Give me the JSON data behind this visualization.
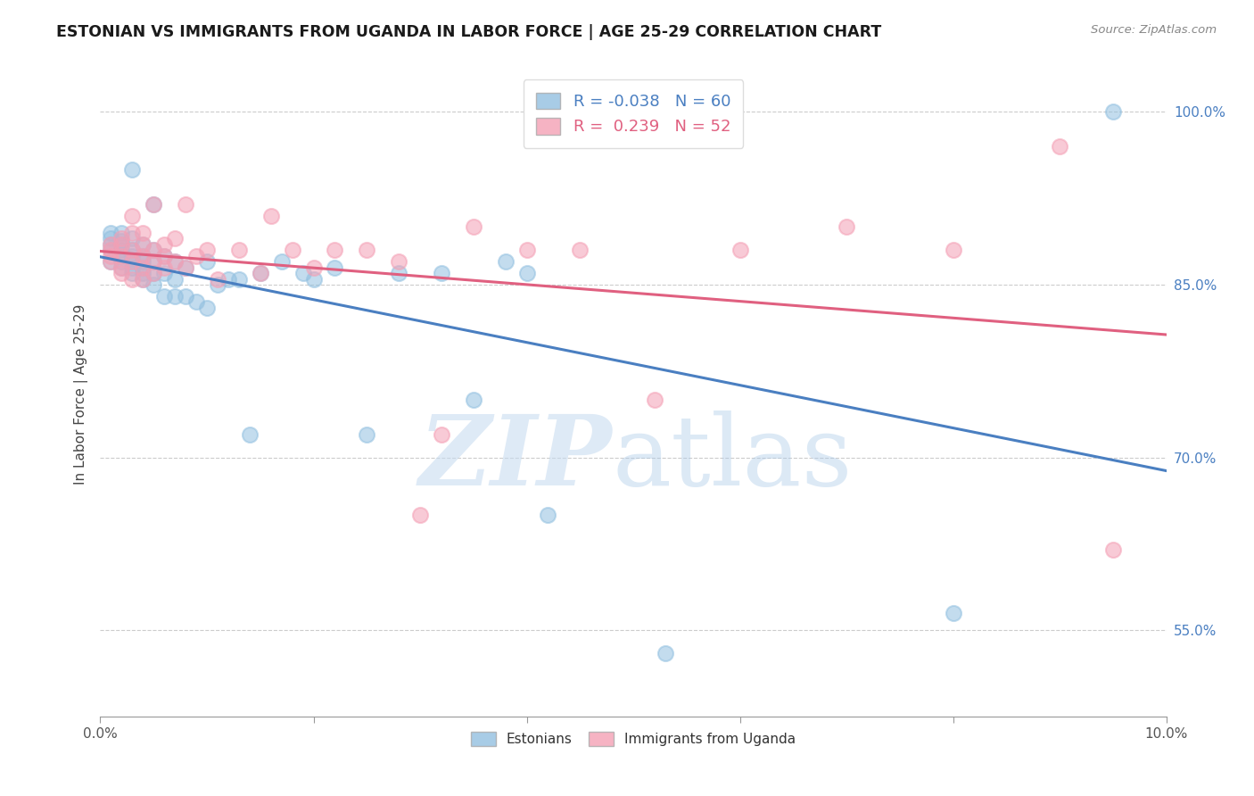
{
  "title": "ESTONIAN VS IMMIGRANTS FROM UGANDA IN LABOR FORCE | AGE 25-29 CORRELATION CHART",
  "source": "Source: ZipAtlas.com",
  "ylabel": "In Labor Force | Age 25-29",
  "ytick_labels": [
    "55.0%",
    "70.0%",
    "85.0%",
    "100.0%"
  ],
  "ytick_values": [
    0.55,
    0.7,
    0.85,
    1.0
  ],
  "xmin": 0.0,
  "xmax": 0.1,
  "ymin": 0.475,
  "ymax": 1.035,
  "blue_R": -0.038,
  "blue_N": 60,
  "pink_R": 0.239,
  "pink_N": 52,
  "blue_color": "#92c0e0",
  "pink_color": "#f4a0b5",
  "blue_line_color": "#4a7fc1",
  "pink_line_color": "#e06080",
  "legend_label_blue": "Estonians",
  "legend_label_pink": "Immigrants from Uganda",
  "blue_x": [
    0.001,
    0.001,
    0.001,
    0.001,
    0.001,
    0.002,
    0.002,
    0.002,
    0.002,
    0.002,
    0.002,
    0.002,
    0.003,
    0.003,
    0.003,
    0.003,
    0.003,
    0.003,
    0.003,
    0.004,
    0.004,
    0.004,
    0.004,
    0.004,
    0.004,
    0.005,
    0.005,
    0.005,
    0.005,
    0.005,
    0.006,
    0.006,
    0.006,
    0.007,
    0.007,
    0.007,
    0.008,
    0.008,
    0.009,
    0.01,
    0.01,
    0.011,
    0.012,
    0.013,
    0.014,
    0.015,
    0.017,
    0.019,
    0.02,
    0.022,
    0.025,
    0.028,
    0.032,
    0.035,
    0.038,
    0.04,
    0.042,
    0.053,
    0.08,
    0.095
  ],
  "blue_y": [
    0.87,
    0.88,
    0.885,
    0.89,
    0.895,
    0.865,
    0.87,
    0.875,
    0.88,
    0.885,
    0.888,
    0.895,
    0.86,
    0.865,
    0.87,
    0.875,
    0.88,
    0.89,
    0.95,
    0.855,
    0.86,
    0.865,
    0.87,
    0.875,
    0.885,
    0.85,
    0.86,
    0.87,
    0.88,
    0.92,
    0.84,
    0.86,
    0.875,
    0.84,
    0.855,
    0.87,
    0.84,
    0.865,
    0.835,
    0.83,
    0.87,
    0.85,
    0.855,
    0.855,
    0.72,
    0.86,
    0.87,
    0.86,
    0.855,
    0.865,
    0.72,
    0.86,
    0.86,
    0.75,
    0.87,
    0.86,
    0.65,
    0.53,
    0.565,
    1.0
  ],
  "pink_x": [
    0.001,
    0.001,
    0.001,
    0.001,
    0.002,
    0.002,
    0.002,
    0.002,
    0.002,
    0.003,
    0.003,
    0.003,
    0.003,
    0.003,
    0.004,
    0.004,
    0.004,
    0.004,
    0.004,
    0.005,
    0.005,
    0.005,
    0.005,
    0.006,
    0.006,
    0.006,
    0.007,
    0.007,
    0.008,
    0.008,
    0.009,
    0.01,
    0.011,
    0.013,
    0.015,
    0.016,
    0.018,
    0.02,
    0.022,
    0.025,
    0.028,
    0.03,
    0.032,
    0.035,
    0.04,
    0.045,
    0.052,
    0.06,
    0.07,
    0.08,
    0.09,
    0.095
  ],
  "pink_y": [
    0.87,
    0.875,
    0.88,
    0.885,
    0.86,
    0.865,
    0.875,
    0.885,
    0.89,
    0.855,
    0.87,
    0.88,
    0.895,
    0.91,
    0.855,
    0.865,
    0.875,
    0.885,
    0.895,
    0.86,
    0.87,
    0.88,
    0.92,
    0.865,
    0.875,
    0.885,
    0.87,
    0.89,
    0.865,
    0.92,
    0.875,
    0.88,
    0.855,
    0.88,
    0.86,
    0.91,
    0.88,
    0.865,
    0.88,
    0.88,
    0.87,
    0.65,
    0.72,
    0.9,
    0.88,
    0.88,
    0.75,
    0.88,
    0.9,
    0.88,
    0.97,
    0.62
  ]
}
